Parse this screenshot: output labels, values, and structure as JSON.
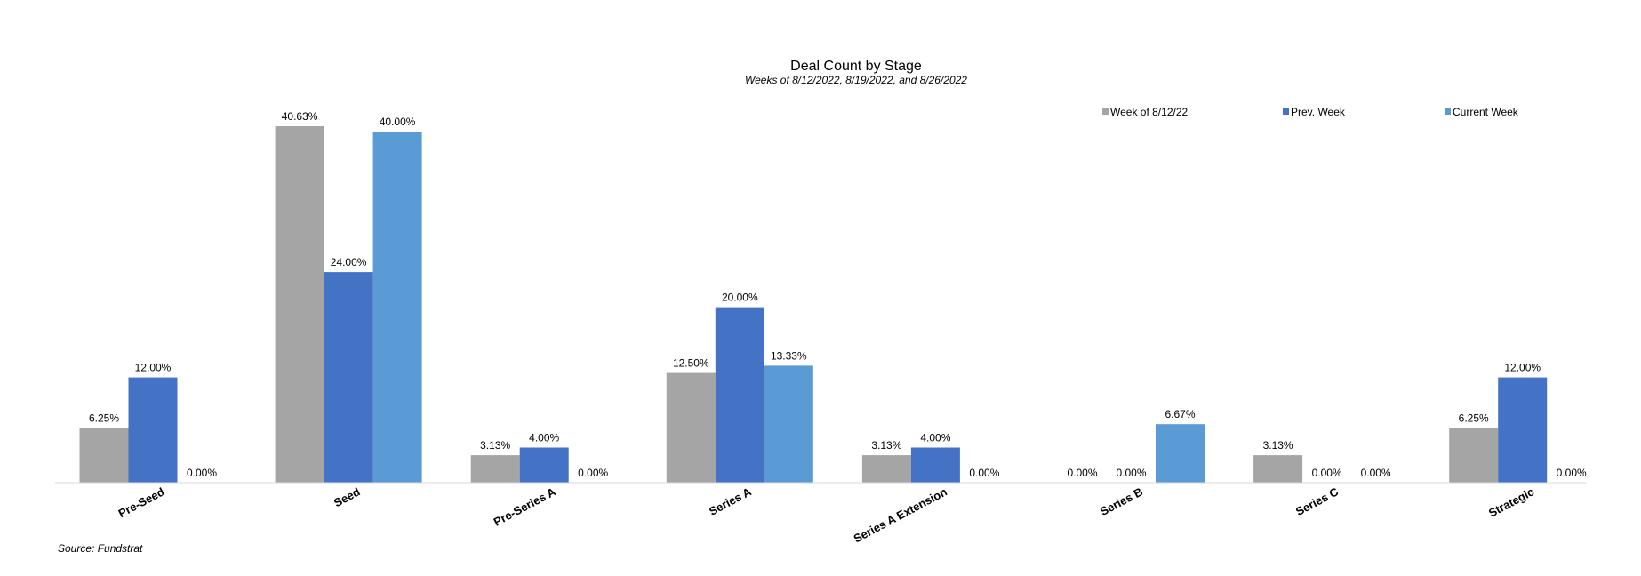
{
  "chart_data": {
    "type": "bar",
    "title": "Deal Count by Stage",
    "subtitle": "Weeks of 8/12/2022, 8/19/2022, and 8/26/2022",
    "xlabel": "",
    "ylabel": "",
    "categories": [
      "Pre-Seed",
      "Seed",
      "Pre-Series A",
      "Series A",
      "Series A Extension",
      "Series B",
      "Series C",
      "Strategic"
    ],
    "series": [
      {
        "name": "Week of 8/12/22",
        "color": "#a5a5a5",
        "values": [
          6.25,
          40.63,
          3.13,
          12.5,
          3.13,
          0,
          3.13,
          6.25
        ],
        "labels": [
          "6.25%",
          "40.63%",
          "3.13%",
          "12.50%",
          "3.13%",
          "0.00%",
          "3.13%",
          "6.25%"
        ]
      },
      {
        "name": "Prev. Week",
        "color": "#4472c4",
        "values": [
          12,
          24,
          4,
          20,
          4,
          0,
          0,
          12
        ],
        "labels": [
          "12.00%",
          "24.00%",
          "4.00%",
          "20.00%",
          "4.00%",
          "0.00%",
          "0.00%",
          "12.00%"
        ]
      },
      {
        "name": "Current Week",
        "color": "#5b9bd5",
        "values": [
          0,
          40,
          0,
          13.33,
          0,
          6.67,
          0,
          0
        ],
        "labels": [
          "0.00%",
          "40.00%",
          "0.00%",
          "13.33%",
          "0.00%",
          "6.67%",
          "0.00%",
          "0.00%"
        ]
      }
    ],
    "ylim": [
      0,
      40.63
    ],
    "grid": false,
    "legend_position": "top-right",
    "source": "Source: Fundstrat"
  }
}
